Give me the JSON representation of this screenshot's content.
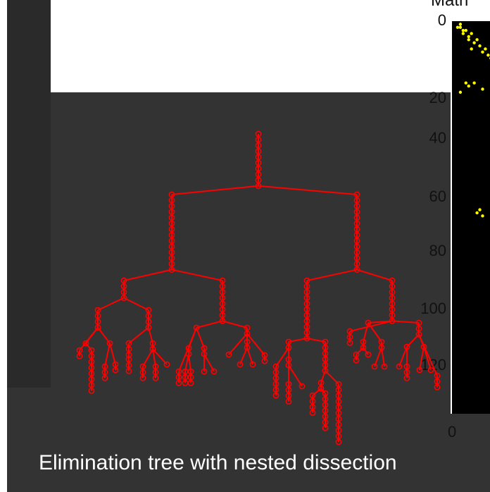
{
  "windows": {
    "spy_title": "Matri",
    "caption": "Elimination tree with nested dissection"
  },
  "colors": {
    "tree": "#ff0000",
    "spy": "#ffff00",
    "background": "#2f2f2f"
  },
  "chart_data": [
    {
      "type": "scatter",
      "title": "Matri",
      "yticks": [
        "0",
        "20",
        "40",
        "60",
        "80",
        "100",
        "120"
      ],
      "xticks": [
        "0"
      ],
      "ylim": [
        0,
        127
      ],
      "marker_color": "#ffff00",
      "points": [
        [
          1,
          2
        ],
        [
          2,
          1
        ],
        [
          2,
          2
        ],
        [
          3,
          4
        ],
        [
          4,
          3
        ],
        [
          3,
          3
        ],
        [
          5,
          5
        ],
        [
          6,
          4
        ],
        [
          5,
          6
        ],
        [
          7,
          7
        ],
        [
          8,
          6
        ],
        [
          9,
          8
        ],
        [
          6,
          9
        ],
        [
          10,
          10
        ],
        [
          11,
          9
        ],
        [
          12,
          11
        ],
        [
          13,
          12
        ],
        [
          4,
          20
        ],
        [
          5,
          21
        ],
        [
          7,
          20
        ],
        [
          10,
          22
        ],
        [
          2,
          23
        ],
        [
          8,
          62
        ],
        [
          9,
          61
        ],
        [
          10,
          63
        ]
      ]
    },
    {
      "type": "tree",
      "title": "",
      "series": [
        {
          "values": []
        }
      ]
    }
  ]
}
